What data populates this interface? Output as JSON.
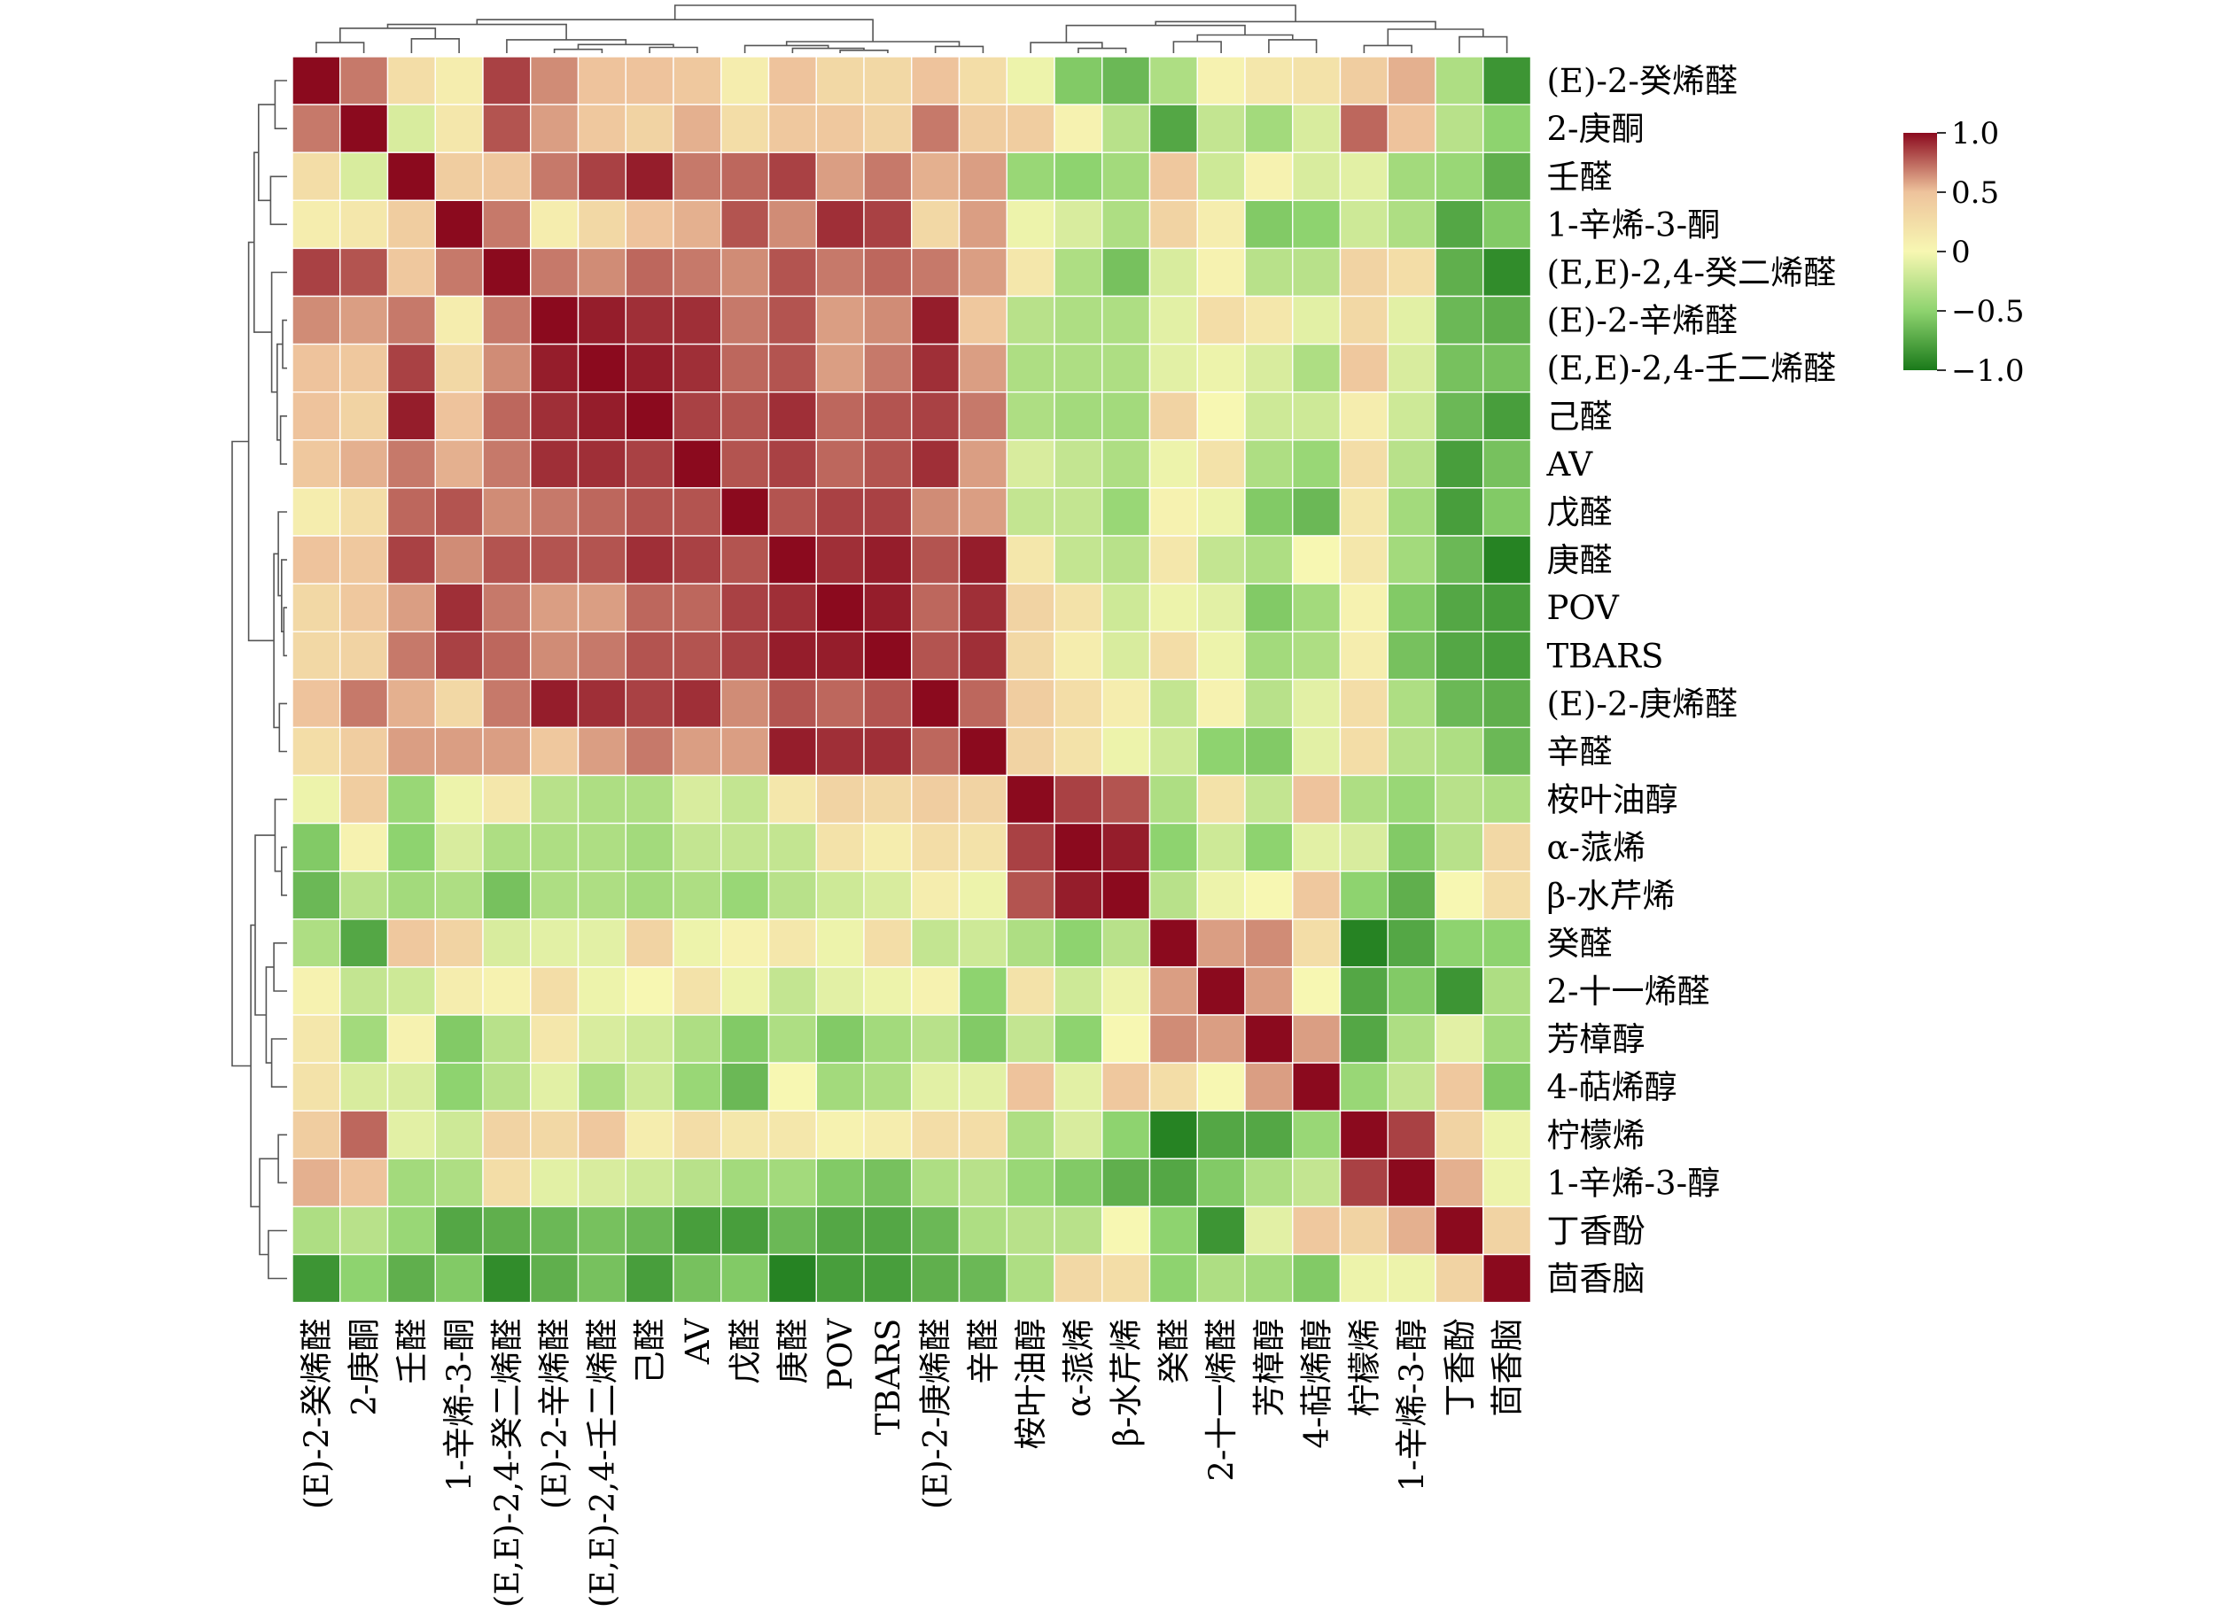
{
  "chart_data": {
    "type": "heatmap",
    "title": "",
    "xlabel": "",
    "ylabel": "",
    "labels": [
      "(E)-2-癸烯醛",
      "2-庚酮",
      "壬醛",
      "1-辛烯-3-酮",
      "(E,E)-2,4-癸二烯醛",
      "(E)-2-辛烯醛",
      "(E,E)-2,4-壬二烯醛",
      "己醛",
      "AV",
      "戊醛",
      "庚醛",
      "POV",
      "TBARS",
      "(E)-2-庚烯醛",
      "辛醛",
      "桉叶油醇",
      "α-蒎烯",
      "β-水芹烯",
      "癸醛",
      "2-十一烯醛",
      "芳樟醇",
      "4-萜烯醇",
      "柠檬烯",
      "1-辛烯-3-醇",
      "丁香酚",
      "茴香脑"
    ],
    "values": [
      [
        1.0,
        0.7,
        0.25,
        0.1,
        0.85,
        0.65,
        0.5,
        0.5,
        0.45,
        0.1,
        0.5,
        0.3,
        0.3,
        0.5,
        0.25,
        -0.05,
        -0.55,
        -0.65,
        -0.35,
        0.05,
        0.15,
        0.2,
        0.4,
        0.55,
        -0.35,
        -0.85
      ],
      [
        0.7,
        1.0,
        -0.15,
        0.15,
        0.8,
        0.6,
        0.45,
        0.35,
        0.55,
        0.25,
        0.45,
        0.45,
        0.35,
        0.7,
        0.4,
        0.4,
        0.05,
        -0.3,
        -0.75,
        -0.25,
        -0.4,
        -0.15,
        0.75,
        0.5,
        -0.3,
        -0.5
      ],
      [
        0.25,
        -0.15,
        1.0,
        0.4,
        0.45,
        0.7,
        0.85,
        0.95,
        0.7,
        0.75,
        0.85,
        0.6,
        0.7,
        0.55,
        0.6,
        -0.45,
        -0.5,
        -0.4,
        0.45,
        -0.2,
        0.05,
        -0.15,
        -0.1,
        -0.4,
        -0.45,
        -0.7
      ],
      [
        0.1,
        0.15,
        0.4,
        1.0,
        0.7,
        0.1,
        0.3,
        0.5,
        0.55,
        0.8,
        0.65,
        0.9,
        0.85,
        0.3,
        0.6,
        -0.05,
        -0.15,
        -0.35,
        0.35,
        0.1,
        -0.55,
        -0.5,
        -0.2,
        -0.35,
        -0.75,
        -0.55
      ],
      [
        0.85,
        0.8,
        0.45,
        0.7,
        1.0,
        0.7,
        0.65,
        0.75,
        0.7,
        0.65,
        0.8,
        0.7,
        0.75,
        0.7,
        0.6,
        0.15,
        -0.35,
        -0.6,
        -0.15,
        0.05,
        -0.3,
        -0.3,
        0.35,
        0.25,
        -0.7,
        -0.9
      ],
      [
        0.65,
        0.6,
        0.7,
        0.1,
        0.7,
        1.0,
        0.95,
        0.9,
        0.9,
        0.7,
        0.8,
        0.6,
        0.65,
        0.95,
        0.45,
        -0.3,
        -0.35,
        -0.35,
        -0.1,
        0.25,
        0.15,
        -0.1,
        0.3,
        -0.1,
        -0.65,
        -0.7
      ],
      [
        0.5,
        0.45,
        0.85,
        0.3,
        0.65,
        0.95,
        1.0,
        0.95,
        0.9,
        0.75,
        0.8,
        0.6,
        0.7,
        0.9,
        0.6,
        -0.35,
        -0.35,
        -0.35,
        -0.1,
        -0.05,
        -0.15,
        -0.35,
        0.45,
        -0.15,
        -0.6,
        -0.6
      ],
      [
        0.5,
        0.35,
        0.95,
        0.5,
        0.75,
        0.9,
        0.95,
        1.0,
        0.85,
        0.8,
        0.9,
        0.75,
        0.8,
        0.85,
        0.7,
        -0.35,
        -0.4,
        -0.4,
        0.35,
        0.0,
        -0.2,
        -0.2,
        0.1,
        -0.2,
        -0.65,
        -0.8
      ],
      [
        0.45,
        0.55,
        0.7,
        0.55,
        0.7,
        0.9,
        0.9,
        0.85,
        1.0,
        0.8,
        0.85,
        0.75,
        0.8,
        0.9,
        0.6,
        -0.15,
        -0.25,
        -0.35,
        -0.05,
        0.2,
        -0.35,
        -0.45,
        0.25,
        -0.3,
        -0.8,
        -0.6
      ],
      [
        0.1,
        0.25,
        0.75,
        0.8,
        0.65,
        0.7,
        0.75,
        0.8,
        0.8,
        1.0,
        0.8,
        0.85,
        0.85,
        0.65,
        0.6,
        -0.25,
        -0.25,
        -0.45,
        0.05,
        -0.05,
        -0.55,
        -0.65,
        0.15,
        -0.4,
        -0.8,
        -0.55
      ],
      [
        0.5,
        0.45,
        0.85,
        0.65,
        0.8,
        0.8,
        0.8,
        0.9,
        0.85,
        0.8,
        1.0,
        0.9,
        0.95,
        0.8,
        0.95,
        0.15,
        -0.25,
        -0.3,
        0.15,
        -0.25,
        -0.35,
        0.0,
        0.15,
        -0.4,
        -0.65,
        -0.95
      ],
      [
        0.3,
        0.45,
        0.6,
        0.9,
        0.7,
        0.6,
        0.6,
        0.75,
        0.75,
        0.85,
        0.9,
        1.0,
        0.95,
        0.75,
        0.9,
        0.35,
        0.2,
        -0.2,
        -0.05,
        -0.1,
        -0.55,
        -0.4,
        0.05,
        -0.55,
        -0.75,
        -0.8
      ],
      [
        0.3,
        0.35,
        0.7,
        0.85,
        0.75,
        0.65,
        0.7,
        0.8,
        0.8,
        0.85,
        0.95,
        0.95,
        1.0,
        0.8,
        0.9,
        0.3,
        0.1,
        -0.15,
        0.25,
        -0.05,
        -0.4,
        -0.35,
        0.1,
        -0.6,
        -0.75,
        -0.8
      ],
      [
        0.5,
        0.7,
        0.55,
        0.3,
        0.7,
        0.95,
        0.9,
        0.85,
        0.9,
        0.65,
        0.8,
        0.75,
        0.8,
        1.0,
        0.75,
        0.4,
        0.25,
        0.1,
        -0.25,
        0.05,
        -0.3,
        -0.1,
        0.25,
        -0.35,
        -0.65,
        -0.7
      ],
      [
        0.25,
        0.4,
        0.6,
        0.6,
        0.6,
        0.45,
        0.6,
        0.7,
        0.6,
        0.6,
        0.95,
        0.9,
        0.9,
        0.75,
        1.0,
        0.35,
        0.2,
        -0.05,
        -0.2,
        -0.5,
        -0.55,
        -0.1,
        0.25,
        -0.3,
        -0.35,
        -0.65
      ],
      [
        -0.05,
        0.4,
        -0.45,
        -0.05,
        0.15,
        -0.3,
        -0.35,
        -0.35,
        -0.15,
        -0.25,
        0.15,
        0.35,
        0.3,
        0.4,
        0.35,
        1.0,
        0.85,
        0.8,
        -0.35,
        0.2,
        -0.25,
        0.5,
        -0.35,
        -0.45,
        -0.3,
        -0.35
      ],
      [
        -0.55,
        0.05,
        -0.5,
        -0.15,
        -0.35,
        -0.35,
        -0.35,
        -0.4,
        -0.25,
        -0.25,
        -0.25,
        0.2,
        0.1,
        0.25,
        0.2,
        0.85,
        1.0,
        0.95,
        -0.5,
        -0.2,
        -0.5,
        -0.1,
        -0.15,
        -0.55,
        -0.3,
        0.3
      ],
      [
        -0.65,
        -0.3,
        -0.4,
        -0.35,
        -0.6,
        -0.35,
        -0.35,
        -0.4,
        -0.35,
        -0.45,
        -0.3,
        -0.2,
        -0.15,
        0.1,
        -0.05,
        0.8,
        0.95,
        1.0,
        -0.3,
        -0.05,
        0.0,
        0.45,
        -0.5,
        -0.7,
        0.0,
        0.25
      ],
      [
        -0.35,
        -0.75,
        0.45,
        0.35,
        -0.15,
        -0.1,
        -0.1,
        0.35,
        -0.05,
        0.05,
        0.15,
        -0.05,
        0.25,
        -0.25,
        -0.2,
        -0.35,
        -0.5,
        -0.3,
        1.0,
        0.6,
        0.65,
        0.25,
        -0.95,
        -0.75,
        -0.5,
        -0.5
      ],
      [
        0.05,
        -0.25,
        -0.2,
        0.1,
        0.05,
        0.25,
        -0.05,
        0.0,
        0.2,
        -0.05,
        -0.25,
        -0.1,
        -0.05,
        0.05,
        -0.5,
        0.2,
        -0.2,
        -0.05,
        0.6,
        1.0,
        0.6,
        0.0,
        -0.75,
        -0.55,
        -0.85,
        -0.35
      ],
      [
        0.15,
        -0.4,
        0.05,
        -0.55,
        -0.3,
        0.15,
        -0.15,
        -0.2,
        -0.35,
        -0.55,
        -0.35,
        -0.55,
        -0.4,
        -0.3,
        -0.55,
        -0.25,
        -0.5,
        0.0,
        0.65,
        0.6,
        1.0,
        0.6,
        -0.75,
        -0.35,
        -0.1,
        -0.4
      ],
      [
        0.2,
        -0.15,
        -0.15,
        -0.5,
        -0.3,
        -0.1,
        -0.35,
        -0.2,
        -0.45,
        -0.65,
        -0.0,
        -0.4,
        -0.35,
        -0.1,
        -0.1,
        0.5,
        -0.1,
        0.45,
        0.25,
        0.0,
        0.6,
        1.0,
        -0.45,
        -0.25,
        0.45,
        -0.55
      ],
      [
        0.4,
        0.75,
        -0.1,
        -0.2,
        0.35,
        0.3,
        0.45,
        0.1,
        0.25,
        0.15,
        0.15,
        0.05,
        0.1,
        0.25,
        0.25,
        -0.35,
        -0.15,
        -0.5,
        -0.95,
        -0.75,
        -0.75,
        -0.45,
        1.0,
        0.85,
        0.35,
        -0.05
      ],
      [
        0.55,
        0.5,
        -0.4,
        -0.35,
        0.25,
        -0.1,
        -0.15,
        -0.2,
        -0.3,
        -0.4,
        -0.4,
        -0.55,
        -0.6,
        -0.35,
        -0.3,
        -0.45,
        -0.55,
        -0.7,
        -0.75,
        -0.55,
        -0.35,
        -0.25,
        0.85,
        1.0,
        0.55,
        -0.05
      ],
      [
        -0.35,
        -0.3,
        -0.45,
        -0.75,
        -0.7,
        -0.65,
        -0.6,
        -0.65,
        -0.8,
        -0.8,
        -0.65,
        -0.75,
        -0.75,
        -0.65,
        -0.35,
        -0.3,
        -0.3,
        0.0,
        -0.5,
        -0.85,
        -0.1,
        0.45,
        0.35,
        0.55,
        1.0,
        0.35
      ],
      [
        -0.85,
        -0.5,
        -0.7,
        -0.55,
        -0.9,
        -0.7,
        -0.6,
        -0.8,
        -0.6,
        -0.55,
        -0.95,
        -0.8,
        -0.8,
        -0.7,
        -0.65,
        -0.35,
        0.3,
        0.25,
        -0.5,
        -0.35,
        -0.4,
        -0.55,
        -0.05,
        -0.05,
        0.35,
        1.0
      ]
    ],
    "colorbar": {
      "range": [
        -1.0,
        1.0
      ],
      "ticks": [
        "1.0",
        "0.5",
        "0",
        "−0.5",
        "−1.0"
      ],
      "tick_values": [
        1.0,
        0.5,
        0.0,
        -0.5,
        -1.0
      ],
      "colors": [
        "#1a7a1a",
        "#8ed36f",
        "#f7f7b2",
        "#eec39c",
        "#8b0a1e"
      ]
    },
    "grid": true,
    "legend": "right"
  }
}
